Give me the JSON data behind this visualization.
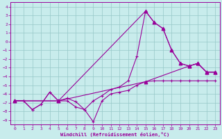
{
  "xlabel": "Windchill (Refroidissement éolien,°C)",
  "bg_color": "#c8ecec",
  "grid_color": "#96c8c8",
  "line_color": "#990099",
  "xlim": [
    -0.5,
    23.5
  ],
  "ylim": [
    -9.5,
    4.5
  ],
  "xticks": [
    0,
    1,
    2,
    3,
    4,
    5,
    6,
    7,
    8,
    9,
    10,
    11,
    12,
    13,
    14,
    15,
    16,
    17,
    18,
    19,
    20,
    21,
    22,
    23
  ],
  "yticks": [
    4,
    3,
    2,
    1,
    0,
    -1,
    -2,
    -3,
    -4,
    -5,
    -6,
    -7,
    -8,
    -9
  ],
  "line1_x": [
    0,
    1,
    2,
    3,
    4,
    5,
    6,
    7,
    8,
    9,
    10,
    11,
    12,
    13,
    14,
    15,
    16,
    17,
    18,
    19,
    20,
    21,
    22,
    23
  ],
  "line1_y": [
    -6.8,
    -6.8,
    -7.8,
    -7.2,
    -5.8,
    -6.8,
    -6.8,
    -7.5,
    -7.8,
    -9.2,
    -6.8,
    -6.0,
    -5.8,
    -5.6,
    -5.0,
    -4.6,
    -4.5,
    -4.5,
    -4.5,
    -4.5,
    -4.5,
    -4.5,
    -4.5,
    -4.5
  ],
  "line2_x": [
    0,
    1,
    2,
    3,
    4,
    5,
    6,
    7,
    8,
    9,
    10,
    11,
    12,
    13,
    14,
    15,
    16,
    17,
    18,
    19,
    20,
    21,
    22,
    23
  ],
  "line2_y": [
    -6.8,
    -6.8,
    -7.8,
    -7.2,
    -5.8,
    -6.8,
    -6.5,
    -6.9,
    -7.8,
    -6.8,
    -6.2,
    -5.5,
    -5.2,
    -4.5,
    -1.7,
    3.5,
    2.2,
    1.5,
    -1.0,
    -2.5,
    -2.8,
    -2.5,
    -3.5,
    -3.5
  ],
  "line3_x": [
    0,
    5,
    15,
    20,
    21,
    22,
    23
  ],
  "line3_y": [
    -6.8,
    -6.8,
    -4.6,
    -2.8,
    -2.5,
    -3.5,
    -3.5
  ],
  "line4_x": [
    0,
    5,
    15,
    16,
    17,
    18,
    19,
    20,
    21,
    22,
    23
  ],
  "line4_y": [
    -6.8,
    -6.8,
    3.5,
    2.2,
    1.5,
    -1.0,
    -2.5,
    -2.8,
    -2.5,
    -3.5,
    -3.5
  ]
}
